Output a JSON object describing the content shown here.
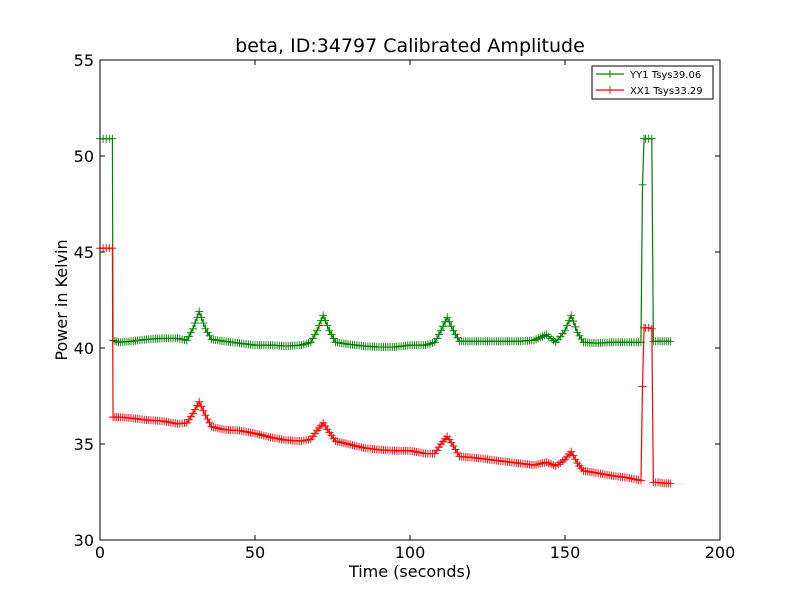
{
  "chart_data": {
    "type": "line",
    "title": "beta, ID:34797 Calibrated Amplitude",
    "xlabel": "Time (seconds)",
    "ylabel": "Power in Kelvin",
    "xlim": [
      0,
      200
    ],
    "ylim": [
      30,
      55
    ],
    "xticks": [
      "0",
      "50",
      "100",
      "150",
      "200"
    ],
    "yticks": [
      "30",
      "35",
      "40",
      "45",
      "50",
      "55"
    ],
    "grid": false,
    "legend_position": "top-right",
    "series": [
      {
        "name": "YY1 Tsys39.06",
        "color": "#008000",
        "marker": "+",
        "points": [
          [
            0,
            50.9
          ],
          [
            1,
            50.9
          ],
          [
            2,
            50.9
          ],
          [
            3,
            50.9
          ],
          [
            4,
            50.9
          ],
          [
            4.2,
            40.4
          ],
          [
            6,
            40.3
          ],
          [
            10,
            40.35
          ],
          [
            15,
            40.45
          ],
          [
            20,
            40.5
          ],
          [
            25,
            40.5
          ],
          [
            28,
            40.4
          ],
          [
            30,
            41.0
          ],
          [
            32,
            41.9
          ],
          [
            34,
            41.0
          ],
          [
            36,
            40.45
          ],
          [
            40,
            40.35
          ],
          [
            45,
            40.25
          ],
          [
            50,
            40.15
          ],
          [
            55,
            40.15
          ],
          [
            60,
            40.1
          ],
          [
            65,
            40.15
          ],
          [
            68,
            40.3
          ],
          [
            70,
            40.9
          ],
          [
            72,
            41.7
          ],
          [
            74,
            40.9
          ],
          [
            76,
            40.3
          ],
          [
            80,
            40.2
          ],
          [
            85,
            40.1
          ],
          [
            90,
            40.05
          ],
          [
            95,
            40.05
          ],
          [
            100,
            40.15
          ],
          [
            105,
            40.15
          ],
          [
            108,
            40.3
          ],
          [
            110,
            40.9
          ],
          [
            112,
            41.6
          ],
          [
            114,
            40.9
          ],
          [
            116,
            40.35
          ],
          [
            120,
            40.35
          ],
          [
            125,
            40.35
          ],
          [
            130,
            40.35
          ],
          [
            135,
            40.35
          ],
          [
            140,
            40.4
          ],
          [
            144,
            40.7
          ],
          [
            147,
            40.3
          ],
          [
            150,
            40.9
          ],
          [
            152,
            41.7
          ],
          [
            154,
            40.8
          ],
          [
            156,
            40.3
          ],
          [
            160,
            40.25
          ],
          [
            165,
            40.3
          ],
          [
            170,
            40.3
          ],
          [
            174.5,
            40.3
          ],
          [
            175,
            48.5
          ],
          [
            175.5,
            50.9
          ],
          [
            176,
            50.9
          ],
          [
            177,
            50.9
          ],
          [
            178,
            50.9
          ],
          [
            178.5,
            40.35
          ],
          [
            180,
            40.35
          ],
          [
            182,
            40.35
          ],
          [
            184,
            40.35
          ]
        ]
      },
      {
        "name": "XX1 Tsys33.29",
        "color": "#ff0000",
        "marker": "+",
        "points": [
          [
            0,
            45.2
          ],
          [
            1,
            45.2
          ],
          [
            2,
            45.2
          ],
          [
            3,
            45.2
          ],
          [
            4,
            45.2
          ],
          [
            4.2,
            36.4
          ],
          [
            6,
            36.4
          ],
          [
            10,
            36.35
          ],
          [
            15,
            36.25
          ],
          [
            20,
            36.2
          ],
          [
            25,
            36.05
          ],
          [
            28,
            36.1
          ],
          [
            30,
            36.6
          ],
          [
            32,
            37.2
          ],
          [
            34,
            36.5
          ],
          [
            36,
            35.9
          ],
          [
            40,
            35.75
          ],
          [
            45,
            35.7
          ],
          [
            50,
            35.55
          ],
          [
            55,
            35.35
          ],
          [
            60,
            35.2
          ],
          [
            65,
            35.15
          ],
          [
            68,
            35.25
          ],
          [
            70,
            35.7
          ],
          [
            72,
            36.1
          ],
          [
            74,
            35.6
          ],
          [
            76,
            35.15
          ],
          [
            80,
            35.0
          ],
          [
            85,
            34.8
          ],
          [
            90,
            34.7
          ],
          [
            95,
            34.65
          ],
          [
            100,
            34.65
          ],
          [
            105,
            34.5
          ],
          [
            108,
            34.5
          ],
          [
            110,
            35.0
          ],
          [
            112,
            35.4
          ],
          [
            114,
            34.9
          ],
          [
            116,
            34.35
          ],
          [
            120,
            34.3
          ],
          [
            125,
            34.2
          ],
          [
            130,
            34.1
          ],
          [
            135,
            34.0
          ],
          [
            140,
            33.9
          ],
          [
            144,
            34.05
          ],
          [
            147,
            33.85
          ],
          [
            150,
            34.2
          ],
          [
            152,
            34.6
          ],
          [
            154,
            34.0
          ],
          [
            156,
            33.6
          ],
          [
            160,
            33.5
          ],
          [
            165,
            33.35
          ],
          [
            170,
            33.25
          ],
          [
            174.5,
            33.1
          ],
          [
            175,
            38.0
          ],
          [
            175.5,
            41.05
          ],
          [
            176,
            41.05
          ],
          [
            177,
            41.05
          ],
          [
            178,
            41.0
          ],
          [
            178.5,
            33.0
          ],
          [
            180,
            33.0
          ],
          [
            182,
            32.95
          ],
          [
            184,
            32.95
          ]
        ]
      }
    ]
  }
}
